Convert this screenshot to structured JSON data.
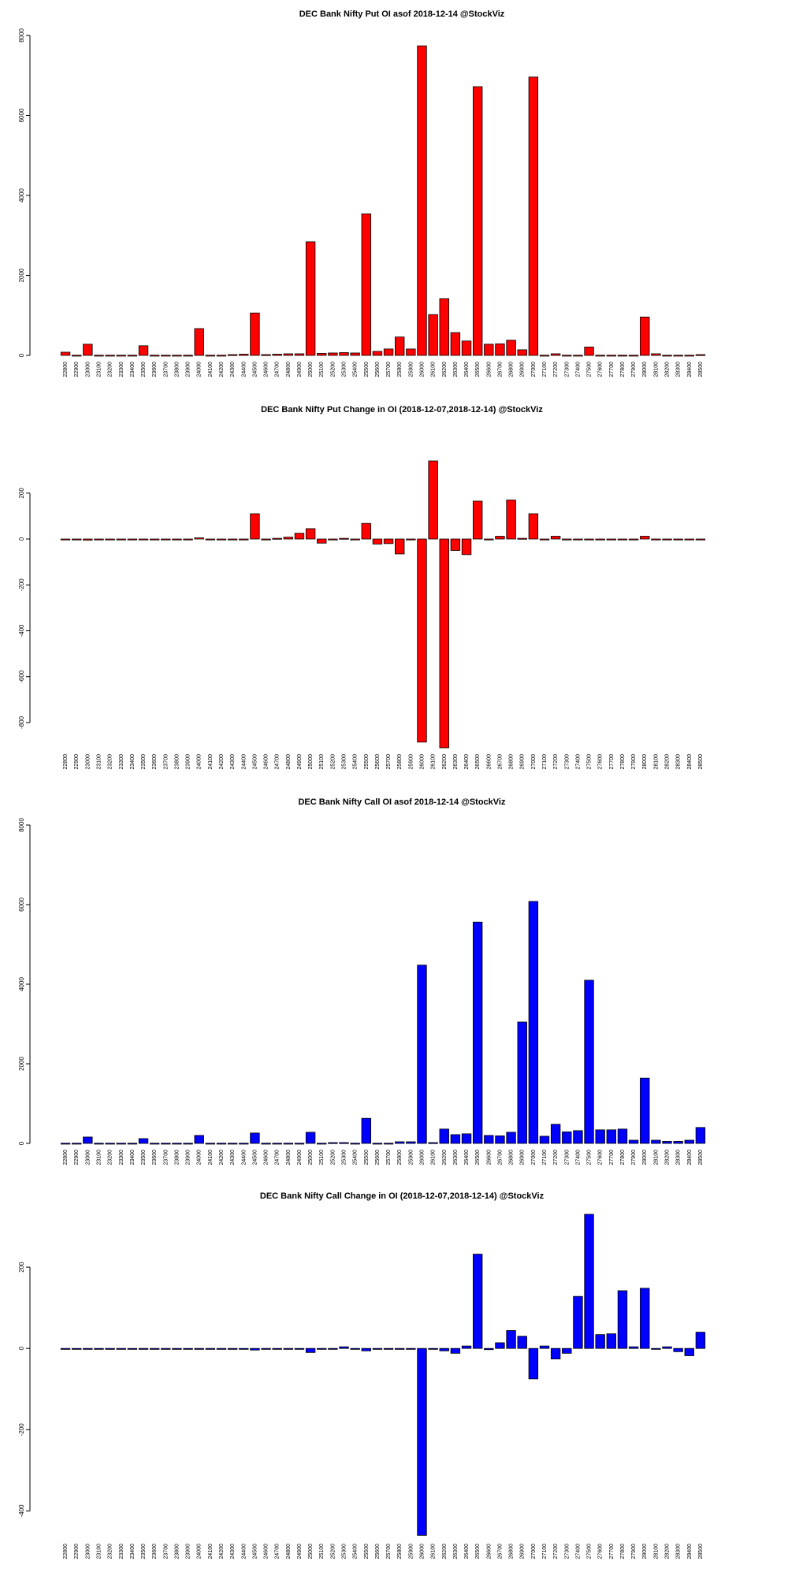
{
  "chart_data": [
    {
      "type": "bar",
      "title": "DEC Bank Nifty Put OI asof 2018-12-14 @StockViz",
      "color": "#ff0000",
      "categories": [
        "22800",
        "22900",
        "23000",
        "23100",
        "23200",
        "23300",
        "23400",
        "23500",
        "23600",
        "23700",
        "23800",
        "23900",
        "24000",
        "24100",
        "24200",
        "24300",
        "24400",
        "24500",
        "24600",
        "24700",
        "24800",
        "24900",
        "25000",
        "25100",
        "25200",
        "25300",
        "25400",
        "25500",
        "25600",
        "25700",
        "25800",
        "25900",
        "26000",
        "26100",
        "26200",
        "26300",
        "26400",
        "26500",
        "26600",
        "26700",
        "26800",
        "26900",
        "27000",
        "27100",
        "27200",
        "27300",
        "27400",
        "27500",
        "27600",
        "27700",
        "27800",
        "27900",
        "28000",
        "28100",
        "28200",
        "28300",
        "28400",
        "28500"
      ],
      "values": [
        80,
        5,
        280,
        5,
        5,
        5,
        5,
        240,
        5,
        5,
        5,
        5,
        670,
        5,
        5,
        20,
        30,
        1060,
        20,
        30,
        40,
        40,
        2840,
        50,
        60,
        70,
        60,
        3540,
        100,
        160,
        460,
        160,
        7740,
        1020,
        1420,
        570,
        360,
        6720,
        280,
        290,
        380,
        140,
        6960,
        5,
        40,
        5,
        5,
        210,
        5,
        5,
        5,
        5,
        960,
        40,
        5,
        5,
        5,
        20
      ],
      "yticks": [
        0,
        2000,
        4000,
        6000,
        8000
      ],
      "ylim": [
        0,
        8000
      ],
      "xlabel": "",
      "ylabel": ""
    },
    {
      "type": "bar",
      "title": "DEC Bank Nifty Put Change in OI (2018-12-07,2018-12-14) @StockViz",
      "color": "#ff0000",
      "categories": [
        "22800",
        "22900",
        "23000",
        "23100",
        "23200",
        "23300",
        "23400",
        "23500",
        "23600",
        "23700",
        "23800",
        "23900",
        "24000",
        "24100",
        "24200",
        "24300",
        "24400",
        "24500",
        "24600",
        "24700",
        "24800",
        "24900",
        "25000",
        "25100",
        "25200",
        "25300",
        "25400",
        "25500",
        "25600",
        "25700",
        "25800",
        "25900",
        "26000",
        "26100",
        "26200",
        "26300",
        "26400",
        "26500",
        "26600",
        "26700",
        "26800",
        "26900",
        "27000",
        "27100",
        "27200",
        "27300",
        "27400",
        "27500",
        "27600",
        "27700",
        "27800",
        "27900",
        "28000",
        "28100",
        "28200",
        "28300",
        "28400",
        "28500"
      ],
      "values": [
        0,
        0,
        -5,
        0,
        0,
        0,
        0,
        -3,
        0,
        0,
        0,
        0,
        5,
        0,
        0,
        0,
        0,
        110,
        0,
        3,
        8,
        25,
        45,
        -18,
        0,
        3,
        -3,
        68,
        -22,
        -20,
        -65,
        -3,
        -885,
        340,
        -910,
        -50,
        -68,
        165,
        0,
        12,
        170,
        3,
        110,
        0,
        12,
        0,
        0,
        -3,
        0,
        0,
        0,
        0,
        12,
        0,
        0,
        0,
        0,
        0
      ],
      "yticks": [
        -800,
        -600,
        -400,
        -200,
        0,
        200
      ],
      "ylim": [
        -910,
        340
      ],
      "xlabel": "",
      "ylabel": ""
    },
    {
      "type": "bar",
      "title": "DEC Bank Nifty Call OI asof 2018-12-14 @StockViz",
      "color": "#0000ff",
      "categories": [
        "22800",
        "22900",
        "23000",
        "23100",
        "23200",
        "23300",
        "23400",
        "23500",
        "23600",
        "23700",
        "23800",
        "23900",
        "24000",
        "24100",
        "24200",
        "24300",
        "24400",
        "24500",
        "24600",
        "24700",
        "24800",
        "24900",
        "25000",
        "25100",
        "25200",
        "25300",
        "25400",
        "25500",
        "25600",
        "25700",
        "25800",
        "25900",
        "26000",
        "26100",
        "26200",
        "26300",
        "26400",
        "26500",
        "26600",
        "26700",
        "26800",
        "26900",
        "27000",
        "27100",
        "27200",
        "27300",
        "27400",
        "27500",
        "27600",
        "27700",
        "27800",
        "27900",
        "28000",
        "28100",
        "28200",
        "28300",
        "28400",
        "28500"
      ],
      "values": [
        5,
        5,
        160,
        5,
        5,
        5,
        5,
        120,
        5,
        5,
        5,
        5,
        200,
        5,
        5,
        5,
        5,
        260,
        5,
        5,
        5,
        5,
        280,
        5,
        20,
        20,
        5,
        630,
        5,
        5,
        40,
        40,
        4480,
        20,
        360,
        220,
        240,
        5560,
        200,
        190,
        280,
        3050,
        6080,
        180,
        480,
        290,
        320,
        4100,
        340,
        340,
        360,
        80,
        1640,
        80,
        50,
        50,
        80,
        400
      ],
      "yticks": [
        0,
        2000,
        4000,
        6000,
        8000
      ],
      "ylim": [
        0,
        8000
      ],
      "xlabel": "",
      "ylabel": ""
    },
    {
      "type": "bar",
      "title": "DEC Bank Nifty Call Change in OI (2018-12-07,2018-12-14) @StockViz",
      "color": "#0000ff",
      "categories": [
        "22800",
        "22900",
        "23000",
        "23100",
        "23200",
        "23300",
        "23400",
        "23500",
        "23600",
        "23700",
        "23800",
        "23900",
        "24000",
        "24100",
        "24200",
        "24300",
        "24400",
        "24500",
        "24600",
        "24700",
        "24800",
        "24900",
        "25000",
        "25100",
        "25200",
        "25300",
        "25400",
        "25500",
        "25600",
        "25700",
        "25800",
        "25900",
        "26000",
        "26100",
        "26200",
        "26300",
        "26400",
        "26500",
        "26600",
        "26700",
        "26800",
        "26900",
        "27000",
        "27100",
        "27200",
        "27300",
        "27400",
        "27500",
        "27600",
        "27700",
        "27800",
        "27900",
        "28000",
        "28100",
        "28200",
        "28300",
        "28400",
        "28500"
      ],
      "values": [
        0,
        0,
        -2,
        0,
        0,
        0,
        0,
        0,
        0,
        0,
        0,
        0,
        -2,
        0,
        0,
        0,
        0,
        -4,
        0,
        0,
        0,
        0,
        -10,
        0,
        0,
        4,
        0,
        -6,
        0,
        0,
        0,
        0,
        -460,
        0,
        -6,
        -12,
        6,
        232,
        -3,
        14,
        44,
        30,
        -75,
        6,
        -26,
        -12,
        128,
        330,
        34,
        36,
        142,
        4,
        148,
        0,
        4,
        -8,
        -18,
        40
      ],
      "yticks": [
        -400,
        -200,
        0,
        200
      ],
      "ylim": [
        -465,
        330
      ],
      "xlabel": "",
      "ylabel": ""
    }
  ]
}
